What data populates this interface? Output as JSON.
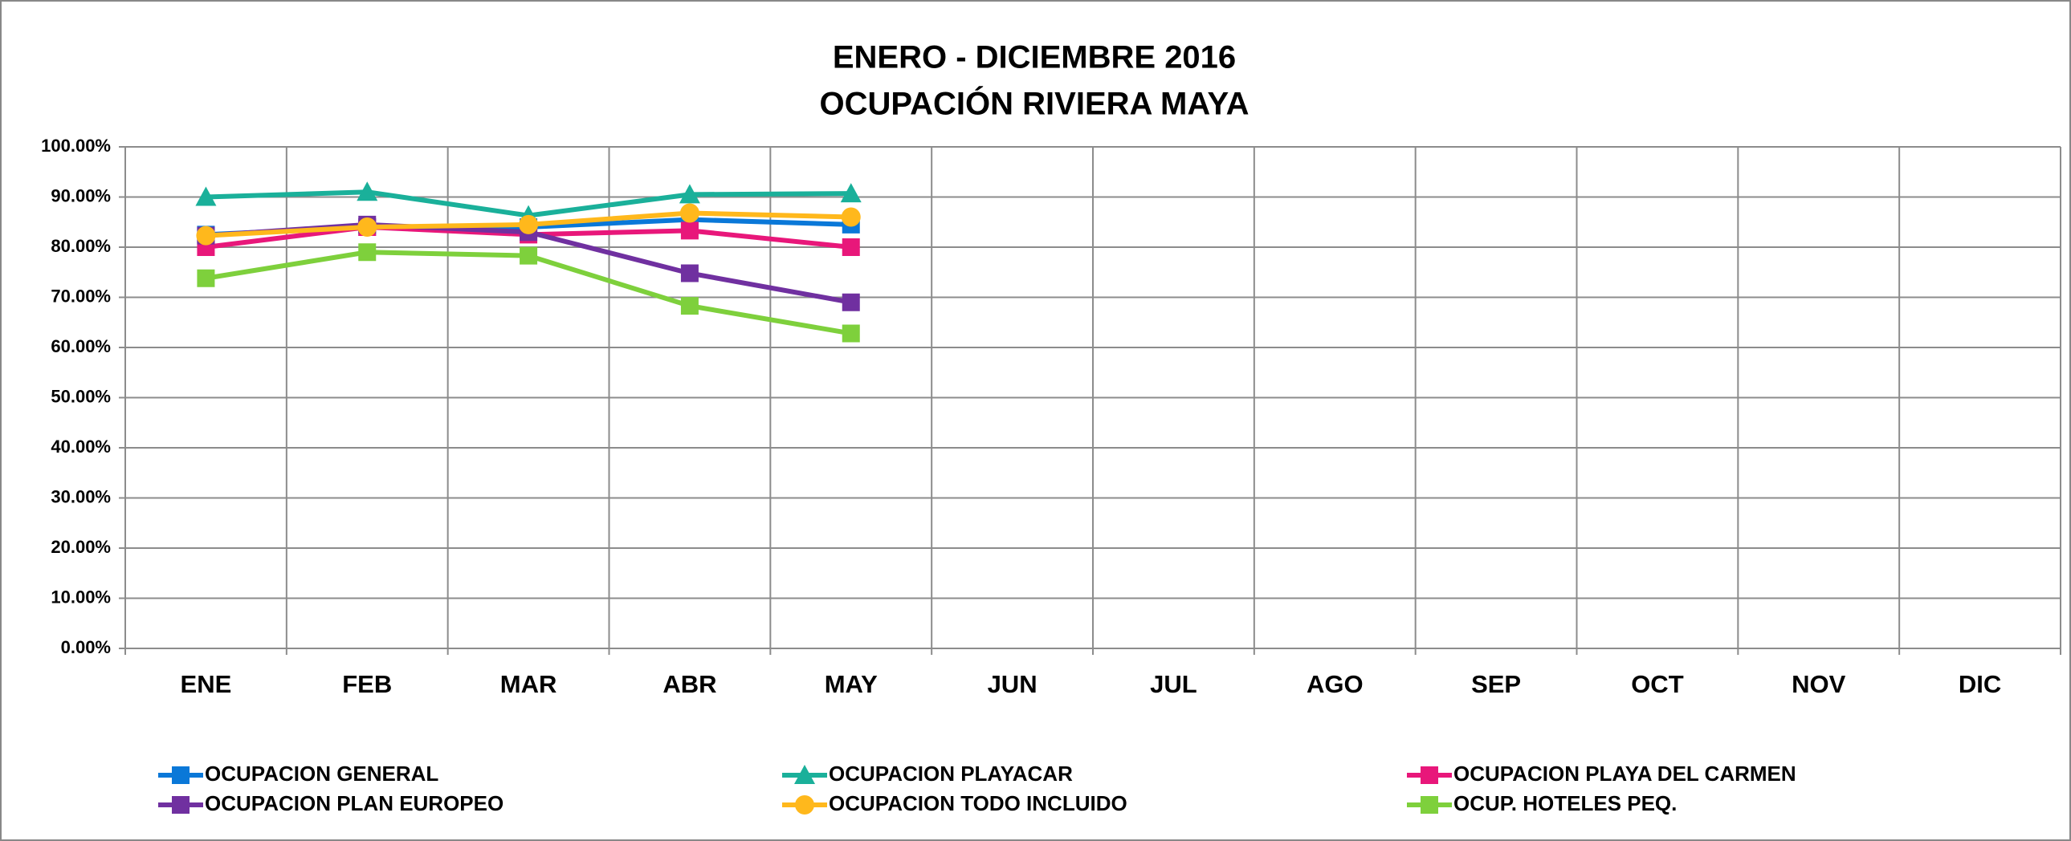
{
  "chart_data": {
    "type": "line",
    "title": [
      "ENERO - DICIEMBRE 2016",
      "OCUPACIÓN RIVIERA MAYA"
    ],
    "categories": [
      "ENE",
      "FEB",
      "MAR",
      "ABR",
      "MAY",
      "JUN",
      "JUL",
      "AGO",
      "SEP",
      "OCT",
      "NOV",
      "DIC"
    ],
    "series": [
      {
        "name": "OCUPACION GENERAL",
        "color": "#0a78d8",
        "marker": "square",
        "values": [
          82.5,
          84,
          84,
          85.5,
          84.5,
          null,
          null,
          null,
          null,
          null,
          null,
          null
        ]
      },
      {
        "name": "OCUPACION PLAYACAR",
        "color": "#1ab09a",
        "marker": "triangle",
        "values": [
          90,
          91,
          86.3,
          90.5,
          90.7,
          null,
          null,
          null,
          null,
          null,
          null,
          null
        ]
      },
      {
        "name": "OCUPACION PLAYA DEL CARMEN",
        "color": "#e8177a",
        "marker": "square",
        "values": [
          80,
          84,
          82.5,
          83.3,
          80,
          null,
          null,
          null,
          null,
          null,
          null,
          null
        ]
      },
      {
        "name": "OCUPACION PLAN EUROPEO",
        "color": "#7030a0",
        "marker": "square",
        "values": [
          82.3,
          84.5,
          83,
          74.8,
          69,
          null,
          null,
          null,
          null,
          null,
          null,
          null
        ]
      },
      {
        "name": "OCUPACION TODO INCLUIDO",
        "color": "#ffb81c",
        "marker": "circle",
        "values": [
          82.3,
          84,
          84.5,
          86.8,
          86,
          null,
          null,
          null,
          null,
          null,
          null,
          null
        ]
      },
      {
        "name": "OCUP. HOTELES PEQ.",
        "color": "#7ed03c",
        "marker": "square",
        "values": [
          73.8,
          79,
          78.3,
          68.3,
          62.8,
          null,
          null,
          null,
          null,
          null,
          null,
          null
        ]
      }
    ],
    "ylim": [
      0,
      100
    ],
    "yticks": [
      {
        "value": 0,
        "label": "0.00%"
      },
      {
        "value": 10,
        "label": "10.00%"
      },
      {
        "value": 20,
        "label": "20.00%"
      },
      {
        "value": 30,
        "label": "30.00%"
      },
      {
        "value": 40,
        "label": "40.00%"
      },
      {
        "value": 50,
        "label": "50.00%"
      },
      {
        "value": 60,
        "label": "60.00%"
      },
      {
        "value": 70,
        "label": "70.00%"
      },
      {
        "value": 80,
        "label": "80.00%"
      },
      {
        "value": 90,
        "label": "90.00%"
      },
      {
        "value": 100,
        "label": "100.00%"
      }
    ],
    "grid": true,
    "legend": "bottom"
  }
}
